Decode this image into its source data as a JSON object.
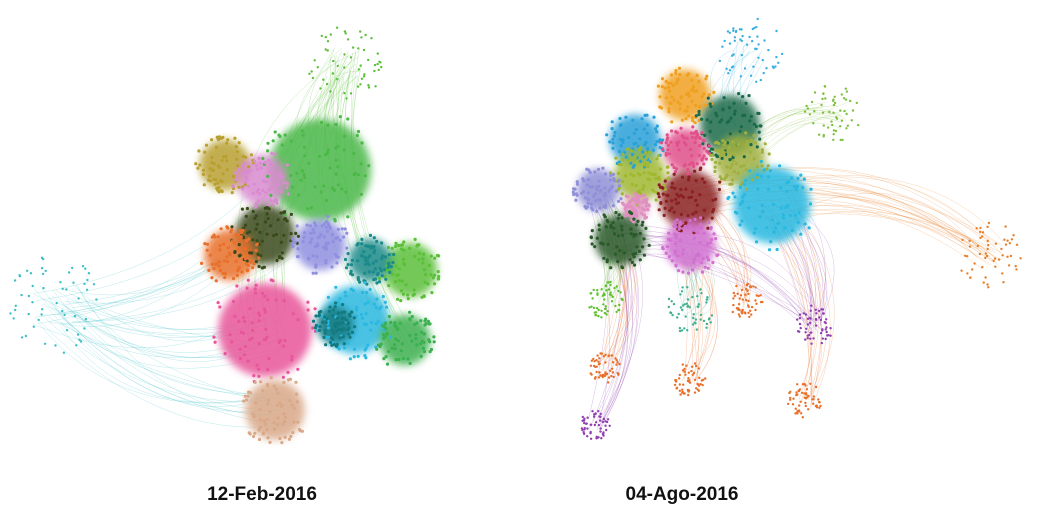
{
  "figure": {
    "panels": [
      {
        "label": "12-Feb-2016"
      },
      {
        "label": "04-Ago-2016"
      }
    ]
  }
}
